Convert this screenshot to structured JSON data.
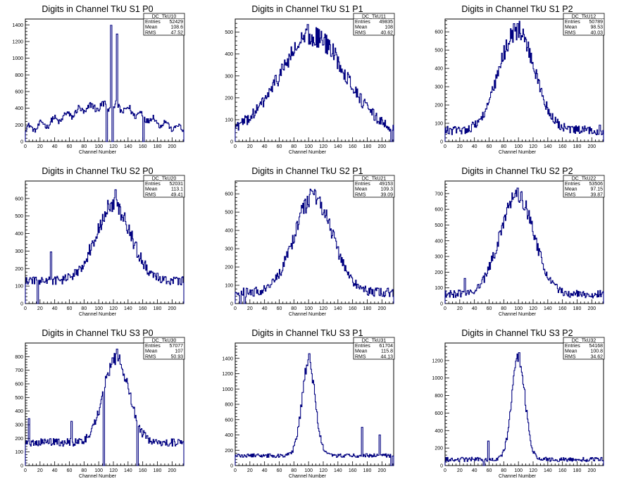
{
  "colors": {
    "histogram_line": "#000080",
    "frame": "#000000",
    "background": "#ffffff"
  },
  "chart_data": [
    {
      "type": "histogram",
      "title": "Digits in Channel TkU S1 P0",
      "xlabel": "Channel Number",
      "ylabel": "",
      "xlim": [
        0,
        216
      ],
      "ylim": [
        0,
        1470
      ],
      "xticks": [
        0,
        20,
        40,
        60,
        80,
        100,
        120,
        140,
        160,
        180,
        200
      ],
      "yticks": [
        0,
        200,
        400,
        600,
        800,
        1000,
        1200,
        1400
      ],
      "stats": {
        "name": "DC_TkU10",
        "entries": "52429",
        "mean": "108.6",
        "rms": "47.52"
      },
      "profile": {
        "kind": "flat",
        "peak": 480,
        "center": 108,
        "width": 55,
        "base": 100
      },
      "spikes": [
        [
          116,
          1395
        ],
        [
          124,
          1290
        ],
        [
          118,
          0
        ],
        [
          110,
          0
        ],
        [
          160,
          0
        ]
      ]
    },
    {
      "type": "histogram",
      "title": "Digits in Channel TkU S1 P1",
      "xlabel": "Channel Number",
      "ylabel": "",
      "xlim": [
        0,
        216
      ],
      "ylim": [
        0,
        560
      ],
      "xticks": [
        0,
        20,
        40,
        60,
        80,
        100,
        120,
        140,
        160,
        180,
        200
      ],
      "yticks": [
        0,
        100,
        200,
        300,
        400,
        500
      ],
      "stats": {
        "name": "DC_TkU11",
        "entries": "49835",
        "mean": "108",
        "rms": "40.62"
      },
      "profile": {
        "kind": "gauss",
        "peak": 480,
        "center": 106,
        "width": 45,
        "base": 40
      },
      "spikes": [
        [
          98,
          535
        ],
        [
          212,
          0
        ]
      ]
    },
    {
      "type": "histogram",
      "title": "Digits in Channel TkU S1 P2",
      "xlabel": "Channel Number",
      "ylabel": "",
      "xlim": [
        0,
        216
      ],
      "ylim": [
        0,
        670
      ],
      "xticks": [
        0,
        20,
        40,
        60,
        80,
        100,
        120,
        140,
        160,
        180,
        200
      ],
      "yticks": [
        0,
        100,
        200,
        300,
        400,
        500,
        600
      ],
      "stats": {
        "name": "DC_TkU12",
        "entries": "50789",
        "mean": "98.53",
        "rms": "40.03"
      },
      "profile": {
        "kind": "gauss",
        "peak": 610,
        "center": 98,
        "width": 24,
        "base": 60
      },
      "spikes": [
        [
          98,
          645
        ],
        [
          210,
          90
        ]
      ]
    },
    {
      "type": "histogram",
      "title": "Digits in Channel TkU S2 P0",
      "xlabel": "Channel Number",
      "ylabel": "",
      "xlim": [
        0,
        216
      ],
      "ylim": [
        0,
        700
      ],
      "xticks": [
        0,
        20,
        40,
        60,
        80,
        100,
        120,
        140,
        160,
        180,
        200
      ],
      "yticks": [
        0,
        100,
        200,
        300,
        400,
        500,
        600
      ],
      "stats": {
        "name": "DC_TkU20",
        "entries": "52031",
        "mean": "113.1",
        "rms": "49.41"
      },
      "profile": {
        "kind": "gauss",
        "peak": 560,
        "center": 120,
        "width": 24,
        "base": 130
      },
      "spikes": [
        [
          122,
          650
        ],
        [
          34,
          295
        ],
        [
          16,
          0
        ]
      ]
    },
    {
      "type": "histogram",
      "title": "Digits in Channel TkU S2 P1",
      "xlabel": "Channel Number",
      "ylabel": "",
      "xlim": [
        0,
        216
      ],
      "ylim": [
        0,
        670
      ],
      "xticks": [
        0,
        20,
        40,
        60,
        80,
        100,
        120,
        140,
        160,
        180,
        200
      ],
      "yticks": [
        0,
        100,
        200,
        300,
        400,
        500,
        600
      ],
      "stats": {
        "name": "DC_TkU21",
        "entries": "49153",
        "mean": "109.3",
        "rms": "39.09"
      },
      "profile": {
        "kind": "gauss",
        "peak": 585,
        "center": 107,
        "width": 26,
        "base": 60
      },
      "spikes": [
        [
          104,
          615
        ],
        [
          6,
          0
        ],
        [
          12,
          0
        ]
      ]
    },
    {
      "type": "histogram",
      "title": "Digits in Channel TkU S2 P2",
      "xlabel": "Channel Number",
      "ylabel": "",
      "xlim": [
        0,
        216
      ],
      "ylim": [
        0,
        780
      ],
      "xticks": [
        0,
        20,
        40,
        60,
        80,
        100,
        120,
        140,
        160,
        180,
        200
      ],
      "yticks": [
        0,
        100,
        200,
        300,
        400,
        500,
        600,
        700
      ],
      "stats": {
        "name": "DC_TkU22",
        "entries": "53506",
        "mean": "97.15",
        "rms": "39.87"
      },
      "profile": {
        "kind": "gauss",
        "peak": 700,
        "center": 98,
        "width": 23,
        "base": 60
      },
      "spikes": [
        [
          98,
          735
        ],
        [
          26,
          160
        ]
      ]
    },
    {
      "type": "histogram",
      "title": "Digits in Channel TkU S3 P0",
      "xlabel": "Channel Number",
      "ylabel": "",
      "xlim": [
        0,
        216
      ],
      "ylim": [
        0,
        900
      ],
      "xticks": [
        0,
        20,
        40,
        60,
        80,
        100,
        120,
        140,
        160,
        180,
        200
      ],
      "yticks": [
        0,
        100,
        200,
        300,
        400,
        500,
        600,
        700,
        800
      ],
      "stats": {
        "name": "DC_TkU30",
        "entries": "57077",
        "mean": "107",
        "rms": "50.93"
      },
      "profile": {
        "kind": "gauss",
        "peak": 800,
        "center": 124,
        "width": 17,
        "base": 170
      },
      "spikes": [
        [
          124,
          855
        ],
        [
          4,
          345
        ],
        [
          62,
          325
        ],
        [
          106,
          0
        ],
        [
          152,
          0
        ]
      ]
    },
    {
      "type": "histogram",
      "title": "Digits in Channel TkU S3 P1",
      "xlabel": "Channel Number",
      "ylabel": "",
      "xlim": [
        0,
        216
      ],
      "ylim": [
        0,
        1600
      ],
      "xticks": [
        0,
        20,
        40,
        60,
        80,
        100,
        120,
        140,
        160,
        180,
        200
      ],
      "yticks": [
        0,
        200,
        400,
        600,
        800,
        1000,
        1200,
        1400
      ],
      "stats": {
        "name": "DC_TkU31",
        "entries": "61704",
        "mean": "115.8",
        "rms": "44.13"
      },
      "profile": {
        "kind": "gauss",
        "peak": 1350,
        "center": 100,
        "width": 9,
        "base": 130
      },
      "spikes": [
        [
          100,
          1460
        ],
        [
          172,
          500
        ],
        [
          196,
          400
        ],
        [
          212,
          0
        ]
      ]
    },
    {
      "type": "histogram",
      "title": "Digits in Channel TkU S3 P2",
      "xlabel": "Channel Number",
      "ylabel": "",
      "xlim": [
        0,
        216
      ],
      "ylim": [
        0,
        1400
      ],
      "xticks": [
        0,
        20,
        40,
        60,
        80,
        100,
        120,
        140,
        160,
        180,
        200
      ],
      "yticks": [
        0,
        200,
        400,
        600,
        800,
        1000,
        1200
      ],
      "stats": {
        "name": "DC_TkU32",
        "entries": "54168",
        "mean": "100.8",
        "rms": "34.62"
      },
      "profile": {
        "kind": "gauss",
        "peak": 1240,
        "center": 100,
        "width": 9,
        "base": 70
      },
      "spikes": [
        [
          100,
          1290
        ],
        [
          58,
          280
        ],
        [
          52,
          0
        ]
      ]
    }
  ]
}
